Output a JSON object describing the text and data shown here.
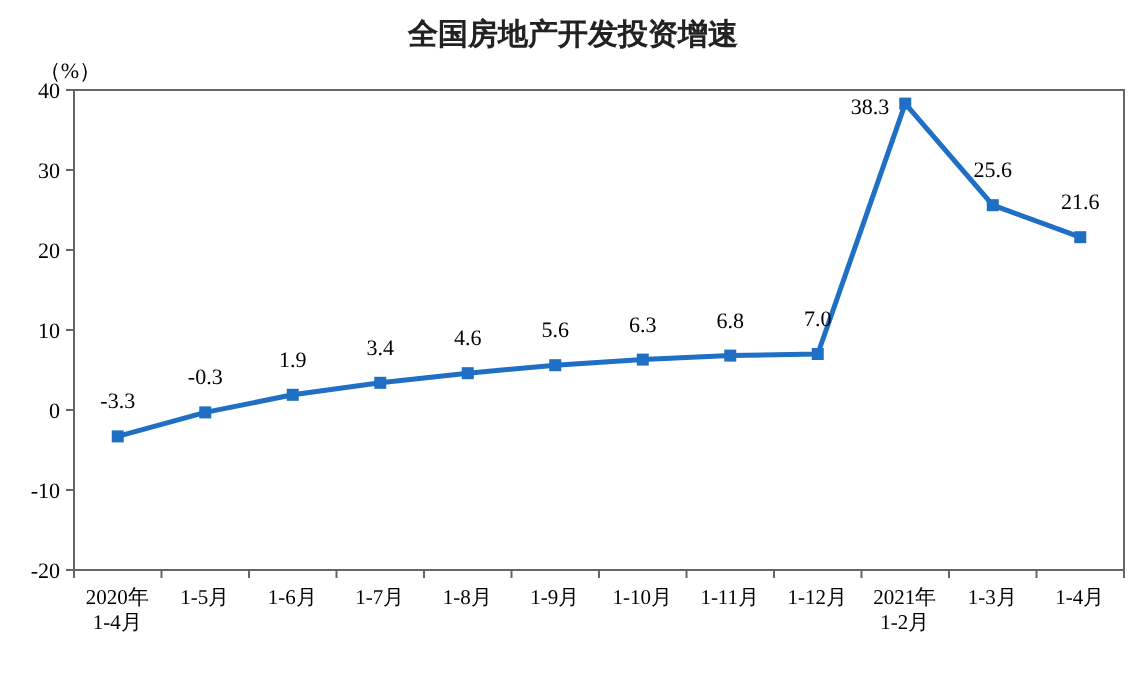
{
  "chart_data": {
    "type": "line",
    "title": "全国房地产开发投资增速",
    "ylabel": "（%）",
    "categories": [
      "2020年\n1-4月",
      "1-5月",
      "1-6月",
      "1-7月",
      "1-8月",
      "1-9月",
      "1-10月",
      "1-11月",
      "1-12月",
      "2021年\n1-2月",
      "1-3月",
      "1-4月"
    ],
    "series": [
      {
        "color": "#1f6fc5",
        "values": [
          -3.3,
          -0.3,
          1.9,
          3.4,
          4.6,
          5.6,
          6.3,
          6.8,
          7.0,
          38.3,
          25.6,
          21.6
        ]
      }
    ],
    "value_labels": [
      "-3.3",
      "-0.3",
      "1.9",
      "3.4",
      "4.6",
      "5.6",
      "6.3",
      "6.8",
      "7.0",
      "38.3",
      "25.6",
      "21.6"
    ],
    "ylim": [
      -20,
      40
    ],
    "yticks": [
      -20,
      -10,
      0,
      10,
      20,
      30,
      40
    ],
    "marker": "square",
    "grid": false,
    "line_style": "solid"
  }
}
